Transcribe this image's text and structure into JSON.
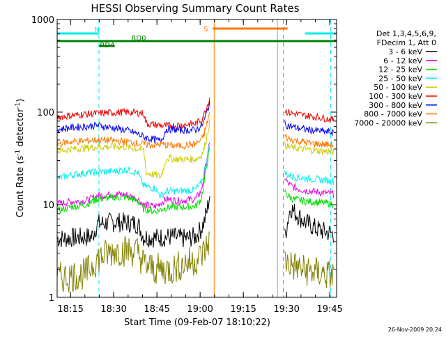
{
  "chart_data": {
    "type": "line",
    "title": "HESSI Observing Summary Count Rates",
    "xlabel": "Start Time (09-Feb-07 18:10:22)",
    "ylabel_main": "Count Rate (s",
    "ylabel_sup1": "-1",
    "ylabel_mid": " detector",
    "ylabel_sup2": "-1",
    "ylabel_end": ")",
    "yscale": "log",
    "ylim": [
      1,
      1000
    ],
    "y_ticks": [
      {
        "value": 1,
        "label": "1"
      },
      {
        "value": 10,
        "label": "10"
      },
      {
        "value": 100,
        "label": "100"
      },
      {
        "value": 1000,
        "label": "1000"
      }
    ],
    "xlim_minutes": [
      0,
      97
    ],
    "x_ticks": [
      {
        "minutes": 4.63,
        "label": "18:15"
      },
      {
        "minutes": 19.63,
        "label": "18:30"
      },
      {
        "minutes": 34.63,
        "label": "18:45"
      },
      {
        "minutes": 49.63,
        "label": "19:00"
      },
      {
        "minutes": 64.63,
        "label": "19:15"
      },
      {
        "minutes": 79.63,
        "label": "19:30"
      },
      {
        "minutes": 94.63,
        "label": "19:45"
      }
    ],
    "legend": {
      "position": "right",
      "header": [
        "Det 1,3,4,5,6,9,",
        "FDecim 1, Att 0"
      ],
      "entries": [
        {
          "label": "3 - 6 keV",
          "color": "#000000"
        },
        {
          "label": "6 - 12 keV",
          "color": "#e000e0"
        },
        {
          "label": "12 - 25 keV",
          "color": "#00dd00"
        },
        {
          "label": "25 - 50 keV",
          "color": "#00eeee"
        },
        {
          "label": "50 - 100 keV",
          "color": "#cccc00"
        },
        {
          "label": "100 - 300 keV",
          "color": "#ee0000"
        },
        {
          "label": "300 - 800 keV",
          "color": "#0000ee"
        },
        {
          "label": "800 - 7000 keV",
          "color": "#ff7700"
        },
        {
          "label": "7000 - 20000 keV",
          "color": "#808000"
        }
      ]
    },
    "series": [
      {
        "name": "3 - 6 keV",
        "color": "#000000",
        "x": [
          0,
          12,
          14,
          20,
          24,
          28,
          30,
          34,
          40,
          44,
          48,
          50,
          51,
          52,
          53
        ],
        "y": [
          4.3,
          4.5,
          6.2,
          6.5,
          6.4,
          6.2,
          4.5,
          4.4,
          4.5,
          4.3,
          4.5,
          5.5,
          6.5,
          8.5,
          13
        ],
        "x2": [
          79,
          81,
          82,
          84,
          86,
          88,
          90,
          92,
          94,
          96
        ],
        "y2": [
          4.5,
          9.5,
          8.5,
          7.5,
          6.5,
          6,
          5.5,
          5.2,
          5,
          4.8
        ]
      },
      {
        "name": "6 - 12 keV",
        "color": "#e000e0",
        "x": [
          0,
          5,
          10,
          14,
          20,
          24,
          28,
          30,
          34,
          38,
          42,
          48,
          50,
          51,
          52,
          53
        ],
        "y": [
          10.2,
          10.8,
          11,
          12.5,
          13,
          12.8,
          11.5,
          10,
          9.5,
          11.5,
          11,
          11.5,
          14,
          20,
          32,
          45
        ],
        "x2": [
          79,
          80,
          82,
          85,
          88,
          92,
          96
        ],
        "y2": [
          20,
          17,
          15.5,
          14.5,
          14,
          13.5,
          13
        ]
      },
      {
        "name": "12 - 25 keV",
        "color": "#00dd00",
        "x": [
          0,
          5,
          10,
          14,
          20,
          24,
          28,
          30,
          34,
          38,
          42,
          48,
          50,
          51,
          52,
          53
        ],
        "y": [
          8.6,
          9.5,
          10,
          11.5,
          12,
          12,
          11,
          9,
          8.5,
          9.3,
          9.4,
          9.6,
          11.5,
          17,
          28,
          40
        ],
        "x2": [
          79,
          80,
          82,
          85,
          88,
          92,
          96
        ],
        "y2": [
          14,
          12.5,
          11.5,
          11,
          10.8,
          10.5,
          10.2
        ]
      },
      {
        "name": "25 - 50 keV",
        "color": "#00eeee",
        "x": [
          0,
          5,
          10,
          14,
          20,
          24,
          28,
          30,
          34,
          36,
          38,
          42,
          48,
          50,
          51,
          52,
          53
        ],
        "y": [
          19,
          21,
          22,
          22.5,
          23,
          24,
          22,
          16,
          15,
          12.5,
          14,
          14,
          14.5,
          17,
          22,
          32,
          48
        ],
        "x2": [
          79,
          80,
          82,
          85,
          88,
          92,
          96
        ],
        "y2": [
          22,
          21,
          20,
          19.5,
          19,
          18.5,
          18
        ]
      },
      {
        "name": "50 - 100 keV",
        "color": "#cccc00",
        "x": [
          0,
          5,
          10,
          14,
          20,
          24,
          28,
          30,
          31,
          34,
          36,
          38,
          42,
          48,
          50,
          51,
          52,
          53
        ],
        "y": [
          38,
          40,
          41,
          42,
          42.5,
          42,
          40,
          39,
          22,
          21,
          20,
          32,
          31,
          31,
          34,
          40,
          55,
          80
        ],
        "x2": [
          79,
          80,
          82,
          85,
          88,
          92,
          96
        ],
        "y2": [
          45,
          42,
          41,
          40,
          39,
          38,
          37
        ]
      },
      {
        "name": "100 - 300 keV",
        "color": "#ee0000",
        "x": [
          0,
          5,
          10,
          14,
          20,
          24,
          28,
          30,
          31,
          34,
          36,
          38,
          42,
          48,
          50,
          51,
          52,
          53
        ],
        "y": [
          88,
          92,
          95,
          97,
          99,
          100,
          98,
          97,
          75,
          73,
          72,
          71,
          72,
          75,
          82,
          95,
          115,
          145
        ],
        "x2": [
          79,
          80,
          82,
          85,
          88,
          92,
          96
        ],
        "y2": [
          105,
          100,
          96,
          93,
          90,
          87,
          82
        ]
      },
      {
        "name": "300 - 800 keV",
        "color": "#0000ee",
        "x": [
          0,
          5,
          10,
          14,
          20,
          24,
          28,
          30,
          34,
          36,
          38,
          42,
          48,
          50,
          51,
          52,
          53
        ],
        "y": [
          65,
          68,
          70,
          72,
          67,
          64,
          58,
          54,
          50,
          49,
          66,
          64,
          64,
          70,
          80,
          100,
          130
        ],
        "x2": [
          79,
          80,
          82,
          85,
          88,
          92,
          96
        ],
        "y2": [
          75,
          72,
          69,
          66,
          64,
          62,
          60
        ]
      },
      {
        "name": "800 - 7000 keV",
        "color": "#ff7700",
        "x": [
          0,
          5,
          10,
          14,
          20,
          24,
          28,
          30,
          34,
          36,
          38,
          42,
          48,
          50,
          51,
          52,
          53
        ],
        "y": [
          46,
          48,
          49,
          50,
          49,
          48,
          46,
          45,
          44,
          45,
          44,
          43,
          45,
          50,
          58,
          75,
          100
        ],
        "x2": [
          79,
          80,
          82,
          85,
          88,
          92,
          96
        ],
        "y2": [
          55,
          52,
          50,
          48,
          46,
          45,
          44
        ]
      },
      {
        "name": "7000 - 20000 keV",
        "color": "#808000",
        "x": [
          0,
          10,
          14,
          20,
          24,
          28,
          30,
          34,
          40,
          44,
          48,
          50,
          52,
          53
        ],
        "y": [
          1.6,
          1.8,
          2.6,
          3.2,
          3.2,
          3.1,
          2.3,
          2,
          2,
          2.3,
          2.5,
          2.8,
          3.5,
          4.5
        ],
        "x2": [
          79,
          80,
          82,
          85,
          88,
          92,
          96
        ],
        "y2": [
          2.5,
          2.4,
          2.2,
          2,
          1.9,
          1.8,
          1.7
        ]
      }
    ],
    "flags": [
      {
        "label": "N",
        "color": "#00eeee",
        "segments": [
          [
            0,
            14.5
          ],
          [
            86,
            97
          ]
        ]
      },
      {
        "label": "RD0",
        "color": "#008000",
        "segments": [
          [
            0,
            97
          ]
        ]
      },
      {
        "label": "RD4",
        "color": "#008000",
        "segments": [
          [
            14.5,
            20
          ]
        ]
      },
      {
        "label": "S",
        "color": "#ff7700",
        "segments": [
          [
            54,
            80
          ]
        ]
      }
    ],
    "vertical_markers": [
      {
        "minutes": 0,
        "color": "#00eeee",
        "style": "dashed"
      },
      {
        "minutes": 14.5,
        "color": "#00eeee",
        "style": "dashed"
      },
      {
        "minutes": 54.5,
        "color": "#ff7700",
        "style": "solid"
      },
      {
        "minutes": 76.5,
        "color": "#00eeee",
        "style": "solid"
      },
      {
        "minutes": 78.5,
        "color": "#ff7700",
        "style": "dashed"
      },
      {
        "minutes": 94.9,
        "color": "#00eeee",
        "style": "dashed"
      }
    ],
    "footer_date": "26-Nov-2009 20:24",
    "grid": false
  }
}
